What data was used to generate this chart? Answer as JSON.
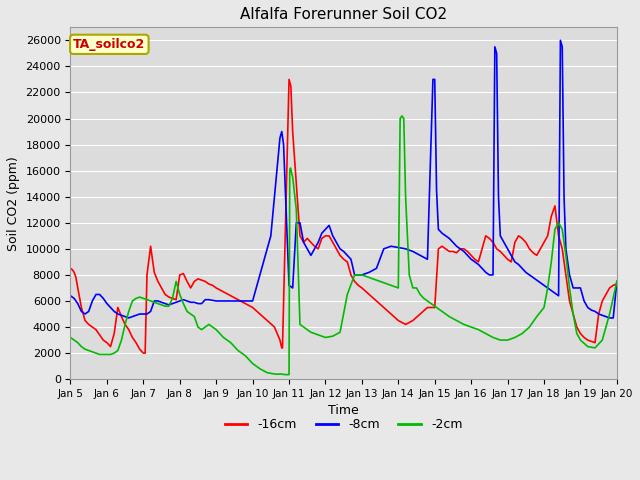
{
  "title": "Alfalfa Forerunner Soil CO2",
  "xlabel": "Time",
  "ylabel": "Soil CO2 (ppm)",
  "ylim": [
    0,
    27000
  ],
  "yticks": [
    0,
    2000,
    4000,
    6000,
    8000,
    10000,
    12000,
    14000,
    16000,
    18000,
    20000,
    22000,
    24000,
    26000
  ],
  "bg_color": "#e8e8e8",
  "plot_bg_color": "#dcdcdc",
  "grid_color": "#ffffff",
  "legend_label": "TA_soilco2",
  "legend_bg": "#ffffcc",
  "legend_border": "#aaa800",
  "series": {
    "red": {
      "label": "-16cm",
      "color": "#ff0000",
      "x": [
        5.0,
        5.05,
        5.1,
        5.15,
        5.2,
        5.3,
        5.4,
        5.5,
        5.6,
        5.7,
        5.8,
        5.9,
        6.0,
        6.1,
        6.2,
        6.3,
        6.4,
        6.5,
        6.6,
        6.7,
        6.8,
        6.9,
        7.0,
        7.05,
        7.1,
        7.2,
        7.3,
        7.4,
        7.5,
        7.6,
        7.7,
        7.8,
        7.9,
        8.0,
        8.1,
        8.2,
        8.3,
        8.4,
        8.5,
        8.6,
        8.7,
        8.8,
        8.9,
        9.0,
        9.2,
        9.4,
        9.6,
        9.8,
        10.0,
        10.2,
        10.4,
        10.6,
        10.75,
        10.8,
        10.82,
        11.0,
        11.05,
        11.1,
        11.2,
        11.3,
        11.4,
        11.5,
        11.6,
        11.7,
        11.8,
        11.9,
        12.0,
        12.1,
        12.2,
        12.3,
        12.4,
        12.5,
        12.6,
        12.7,
        12.8,
        12.9,
        13.0,
        13.2,
        13.4,
        13.6,
        13.8,
        14.0,
        14.2,
        14.4,
        14.6,
        14.8,
        15.0,
        15.1,
        15.2,
        15.3,
        15.4,
        15.5,
        15.6,
        15.7,
        15.8,
        15.9,
        16.0,
        16.1,
        16.2,
        16.3,
        16.4,
        16.5,
        16.6,
        16.7,
        16.8,
        16.9,
        17.0,
        17.1,
        17.2,
        17.3,
        17.4,
        17.5,
        17.6,
        17.7,
        17.8,
        17.9,
        18.0,
        18.1,
        18.2,
        18.3,
        18.4,
        18.5,
        18.6,
        18.7,
        18.8,
        18.9,
        19.0,
        19.1,
        19.2,
        19.3,
        19.4,
        19.5,
        19.6,
        19.7,
        19.8,
        19.9,
        20.0
      ],
      "y": [
        8500,
        8400,
        8200,
        7800,
        7000,
        5500,
        4500,
        4200,
        4000,
        3800,
        3400,
        3000,
        2800,
        2500,
        3500,
        5500,
        4800,
        4200,
        3800,
        3200,
        2800,
        2300,
        2000,
        2000,
        8000,
        10200,
        8200,
        7500,
        7000,
        6500,
        6300,
        6200,
        6100,
        8000,
        8100,
        7500,
        7000,
        7500,
        7700,
        7600,
        7500,
        7300,
        7200,
        7000,
        6700,
        6400,
        6100,
        5800,
        5500,
        5000,
        4500,
        4000,
        3000,
        2400,
        2400,
        23000,
        22500,
        19000,
        15000,
        11000,
        10500,
        10800,
        10500,
        10200,
        10000,
        10800,
        11000,
        11000,
        10500,
        10000,
        9500,
        9200,
        9000,
        8000,
        7500,
        7200,
        7000,
        6500,
        6000,
        5500,
        5000,
        4500,
        4200,
        4500,
        5000,
        5500,
        5500,
        10000,
        10200,
        10000,
        9800,
        9800,
        9700,
        10000,
        10000,
        9800,
        9500,
        9200,
        9000,
        10000,
        11000,
        10800,
        10500,
        10000,
        9800,
        9500,
        9200,
        9000,
        10500,
        11000,
        10800,
        10500,
        10000,
        9700,
        9500,
        10000,
        10500,
        11000,
        12500,
        13300,
        11000,
        10000,
        8000,
        6000,
        5000,
        4000,
        3500,
        3200,
        3000,
        2900,
        2800,
        5000,
        6000,
        6500,
        7000,
        7200,
        7300
      ]
    },
    "blue": {
      "label": "-8cm",
      "color": "#0000ff",
      "x": [
        5.0,
        5.1,
        5.2,
        5.3,
        5.4,
        5.5,
        5.6,
        5.7,
        5.8,
        5.9,
        6.0,
        6.1,
        6.2,
        6.3,
        6.4,
        6.5,
        6.6,
        6.7,
        6.8,
        6.9,
        7.0,
        7.1,
        7.2,
        7.3,
        7.4,
        7.5,
        7.6,
        7.7,
        7.8,
        7.9,
        8.0,
        8.1,
        8.2,
        8.3,
        8.4,
        8.5,
        8.6,
        8.7,
        8.8,
        8.9,
        9.0,
        9.2,
        9.4,
        9.6,
        9.8,
        10.0,
        10.5,
        10.75,
        10.8,
        10.85,
        11.0,
        11.1,
        11.2,
        11.3,
        11.4,
        11.5,
        11.6,
        11.7,
        11.8,
        11.9,
        12.0,
        12.1,
        12.2,
        12.3,
        12.4,
        12.5,
        12.6,
        12.7,
        12.8,
        12.9,
        13.0,
        13.2,
        13.4,
        13.6,
        13.8,
        14.0,
        14.2,
        14.4,
        14.6,
        14.8,
        14.95,
        15.0,
        15.05,
        15.1,
        15.2,
        15.3,
        15.4,
        15.5,
        15.6,
        15.7,
        15.8,
        15.9,
        16.0,
        16.1,
        16.2,
        16.3,
        16.4,
        16.5,
        16.6,
        16.65,
        16.7,
        16.75,
        16.8,
        16.9,
        17.0,
        17.1,
        17.2,
        17.3,
        17.4,
        17.5,
        17.6,
        17.7,
        17.8,
        17.9,
        18.0,
        18.1,
        18.2,
        18.3,
        18.4,
        18.45,
        18.5,
        18.55,
        18.6,
        18.7,
        18.8,
        18.9,
        19.0,
        19.1,
        19.2,
        19.3,
        19.4,
        19.5,
        19.6,
        19.7,
        19.8,
        19.9,
        20.0
      ],
      "y": [
        6400,
        6200,
        5800,
        5200,
        5000,
        5200,
        6000,
        6500,
        6500,
        6200,
        5800,
        5500,
        5200,
        5000,
        4900,
        4800,
        4700,
        4800,
        4900,
        5000,
        5000,
        5000,
        5200,
        6000,
        6000,
        5900,
        5800,
        5700,
        5800,
        5900,
        6000,
        6100,
        6000,
        5900,
        5900,
        5800,
        5800,
        6100,
        6100,
        6050,
        6000,
        6000,
        6000,
        6000,
        6000,
        6000,
        11000,
        18500,
        19000,
        18000,
        7200,
        7000,
        12000,
        12000,
        10500,
        10000,
        9500,
        10000,
        10500,
        11200,
        11500,
        11800,
        11000,
        10500,
        10000,
        9800,
        9500,
        9200,
        8000,
        8000,
        8000,
        8200,
        8500,
        10000,
        10200,
        10100,
        10000,
        9800,
        9500,
        9200,
        23000,
        23000,
        14500,
        11500,
        11200,
        11000,
        10800,
        10500,
        10200,
        10000,
        9800,
        9500,
        9200,
        9000,
        8800,
        8500,
        8200,
        8000,
        8000,
        25500,
        25000,
        14000,
        11000,
        10500,
        10000,
        9500,
        9000,
        8800,
        8500,
        8200,
        8000,
        7800,
        7600,
        7400,
        7200,
        7000,
        6800,
        6600,
        6400,
        26000,
        25500,
        14000,
        10000,
        8000,
        7000,
        7000,
        7000,
        6000,
        5500,
        5300,
        5200,
        5000,
        4900,
        4800,
        4700,
        4700,
        7500
      ]
    },
    "green": {
      "label": "-2cm",
      "color": "#00bb00",
      "x": [
        5.0,
        5.1,
        5.2,
        5.3,
        5.4,
        5.5,
        5.6,
        5.7,
        5.8,
        5.9,
        6.0,
        6.1,
        6.2,
        6.3,
        6.4,
        6.5,
        6.6,
        6.7,
        6.8,
        6.9,
        7.0,
        7.1,
        7.2,
        7.3,
        7.4,
        7.5,
        7.6,
        7.7,
        7.8,
        7.9,
        8.0,
        8.1,
        8.2,
        8.3,
        8.4,
        8.5,
        8.6,
        8.7,
        8.8,
        8.9,
        9.0,
        9.2,
        9.4,
        9.6,
        9.8,
        10.0,
        10.2,
        10.4,
        10.6,
        10.7,
        10.72,
        10.74,
        10.76,
        10.9,
        11.0,
        11.02,
        11.04,
        11.1,
        11.2,
        11.3,
        11.4,
        11.5,
        11.6,
        11.7,
        11.8,
        11.9,
        12.0,
        12.2,
        12.4,
        12.6,
        12.8,
        13.0,
        13.2,
        13.4,
        13.6,
        13.8,
        14.0,
        14.05,
        14.1,
        14.15,
        14.2,
        14.3,
        14.4,
        14.5,
        14.6,
        14.7,
        14.8,
        14.9,
        15.0,
        15.2,
        15.4,
        15.6,
        15.8,
        16.0,
        16.2,
        16.4,
        16.6,
        16.8,
        17.0,
        17.2,
        17.4,
        17.6,
        17.8,
        18.0,
        18.1,
        18.2,
        18.3,
        18.4,
        18.5,
        18.6,
        18.7,
        18.8,
        18.9,
        19.0,
        19.2,
        19.4,
        19.6,
        19.8,
        20.0
      ],
      "y": [
        3200,
        3000,
        2800,
        2500,
        2300,
        2200,
        2100,
        2000,
        1900,
        1900,
        1900,
        1900,
        2000,
        2200,
        3000,
        4200,
        5200,
        6000,
        6200,
        6300,
        6200,
        6100,
        6000,
        5900,
        5800,
        5700,
        5600,
        5600,
        6200,
        7500,
        6500,
        5800,
        5200,
        5000,
        4800,
        4000,
        3800,
        4000,
        4200,
        4000,
        3800,
        3200,
        2800,
        2200,
        1800,
        1200,
        800,
        500,
        400,
        380,
        380,
        400,
        400,
        350,
        350,
        16000,
        16200,
        15500,
        13000,
        4200,
        4000,
        3800,
        3600,
        3500,
        3400,
        3300,
        3200,
        3300,
        3600,
        6500,
        8000,
        8000,
        7800,
        7600,
        7400,
        7200,
        7000,
        20000,
        20200,
        20000,
        14000,
        8000,
        7000,
        7000,
        6500,
        6200,
        6000,
        5800,
        5600,
        5200,
        4800,
        4500,
        4200,
        4000,
        3800,
        3500,
        3200,
        3000,
        3000,
        3200,
        3500,
        4000,
        4800,
        5500,
        7000,
        9000,
        11500,
        12000,
        11500,
        9500,
        7000,
        5000,
        3500,
        3000,
        2500,
        2400,
        3000,
        5000,
        7500
      ]
    }
  },
  "xtick_positions": [
    5,
    6,
    7,
    8,
    9,
    10,
    11,
    12,
    13,
    14,
    15,
    16,
    17,
    18,
    19,
    20
  ],
  "xtick_labels": [
    "Jan 5",
    "Jan 6",
    "Jan 7",
    "Jan 8",
    "Jan 9",
    "Jan 10",
    "Jan 11",
    "Jan 12",
    "Jan 13",
    "Jan 14",
    "Jan 15",
    "Jan 16",
    "Jan 17",
    "Jan 18",
    "Jan 19",
    "Jan 20"
  ]
}
